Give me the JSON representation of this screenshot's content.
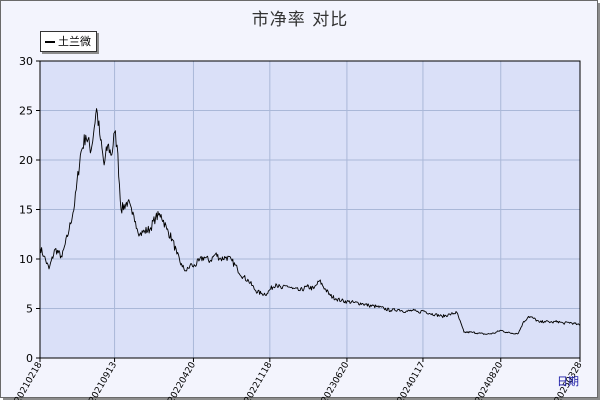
{
  "chart_data": {
    "type": "line",
    "title": "市净率  对比",
    "xlabel": "日期",
    "ylabel": "",
    "ylim": [
      0,
      30
    ],
    "yticks": [
      0,
      5,
      10,
      15,
      20,
      25,
      30
    ],
    "grid": true,
    "legend_position": "top-left",
    "x_tick_labels": [
      "20210218",
      "20210913",
      "20220420",
      "20221118",
      "20230620",
      "20240117",
      "20240820",
      "20250328"
    ],
    "series": [
      {
        "name": "土兰微",
        "color": "#000000",
        "x": [
          "2021-02-18",
          "2021-03-01",
          "2021-03-15",
          "2021-04-01",
          "2021-04-20",
          "2021-05-10",
          "2021-05-25",
          "2021-06-10",
          "2021-06-25",
          "2021-07-10",
          "2021-07-25",
          "2021-08-05",
          "2021-08-15",
          "2021-08-25",
          "2021-09-05",
          "2021-09-13",
          "2021-09-20",
          "2021-10-01",
          "2021-10-20",
          "2021-11-01",
          "2021-11-10",
          "2021-11-22",
          "2021-12-05",
          "2021-12-20",
          "2022-01-05",
          "2022-01-20",
          "2022-02-05",
          "2022-02-20",
          "2022-03-05",
          "2022-03-20",
          "2022-04-01",
          "2022-04-15",
          "2022-04-20",
          "2022-05-05",
          "2022-05-20",
          "2022-06-05",
          "2022-06-20",
          "2022-07-05",
          "2022-07-20",
          "2022-08-05",
          "2022-08-20",
          "2022-09-05",
          "2022-09-20",
          "2022-10-10",
          "2022-10-25",
          "2022-11-10",
          "2022-11-18",
          "2022-12-05",
          "2022-12-20",
          "2023-01-05",
          "2023-01-20",
          "2023-02-10",
          "2023-03-01",
          "2023-03-20",
          "2023-04-05",
          "2023-04-20",
          "2023-05-05",
          "2023-05-20",
          "2023-06-05",
          "2023-06-20",
          "2023-07-10",
          "2023-08-01",
          "2023-08-20",
          "2023-09-10",
          "2023-10-01",
          "2023-10-20",
          "2023-11-10",
          "2023-12-01",
          "2023-12-20",
          "2024-01-05",
          "2024-01-17",
          "2024-02-05",
          "2024-02-20",
          "2024-03-10",
          "2024-04-01",
          "2024-04-20",
          "2024-05-10",
          "2024-06-01",
          "2024-06-20",
          "2024-07-10",
          "2024-08-01",
          "2024-08-20",
          "2024-09-05",
          "2024-09-20",
          "2024-10-08",
          "2024-10-20",
          "2024-11-05",
          "2024-11-20",
          "2024-12-05",
          "2024-12-20",
          "2025-01-10",
          "2025-01-25",
          "2025-02-10",
          "2025-02-25",
          "2025-03-10",
          "2025-03-20",
          "2025-03-28"
        ],
        "values": [
          11.2,
          10.3,
          9.0,
          11.0,
          10.2,
          13.0,
          15.5,
          20.5,
          22.5,
          21.0,
          25.2,
          22.0,
          19.5,
          21.5,
          20.5,
          22.8,
          21.5,
          15.0,
          15.8,
          14.5,
          13.8,
          12.5,
          12.8,
          13.0,
          14.2,
          14.5,
          13.0,
          12.0,
          10.5,
          9.2,
          8.8,
          9.5,
          9.2,
          9.8,
          10.2,
          9.8,
          10.5,
          10.0,
          10.2,
          9.8,
          9.0,
          8.2,
          7.8,
          6.8,
          6.5,
          6.5,
          6.9,
          7.5,
          7.0,
          7.3,
          7.0,
          6.8,
          7.2,
          7.0,
          7.8,
          7.0,
          6.3,
          6.0,
          5.8,
          5.7,
          5.6,
          5.5,
          5.3,
          5.2,
          5.0,
          4.8,
          4.9,
          4.7,
          4.8,
          4.6,
          4.8,
          4.5,
          4.4,
          4.2,
          4.4,
          4.6,
          2.6,
          2.6,
          2.5,
          2.4,
          2.5,
          2.8,
          2.6,
          2.5,
          2.5,
          3.5,
          4.2,
          4.0,
          3.6,
          3.7,
          3.6,
          3.7,
          3.5,
          3.6,
          3.5,
          3.4,
          3.3
        ]
      }
    ]
  }
}
